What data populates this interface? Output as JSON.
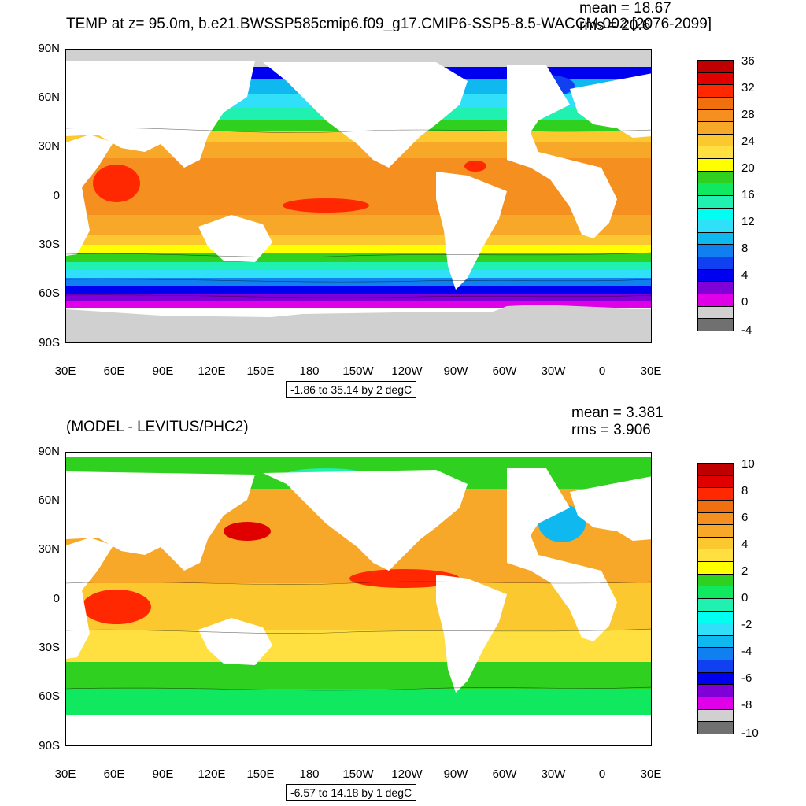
{
  "panels": [
    {
      "id": "top",
      "title": "TEMP at z=  95.0m, b.e21.BWSSP585cmip6.f09_g17.CMIP6-SSP5-8.5-WACCM.002 [2076-2099]",
      "mean_label": "mean = 18.67",
      "rms_label": "rms = 20.6",
      "range_label": "-1.86 to 35.14 by 2 degC",
      "lat_labels": [
        "90N",
        "60N",
        "30N",
        "0",
        "30S",
        "60S",
        "90S"
      ],
      "lon_labels": [
        "30E",
        "60E",
        "90E",
        "120E",
        "150E",
        "180",
        "150W",
        "120W",
        "90W",
        "60W",
        "30W",
        "0",
        "30E"
      ],
      "colorbar_labels": [
        "36",
        "32",
        "28",
        "24",
        "20",
        "16",
        "12",
        "8",
        "4",
        "0",
        "-4"
      ],
      "colorbar_colors": [
        "#c00000",
        "#e00000",
        "#ff2800",
        "#f07010",
        "#f59020",
        "#f8a828",
        "#fcc830",
        "#ffe040",
        "#ffff00",
        "#30d020",
        "#10e860",
        "#20f0b0",
        "#00fff0",
        "#30e0f8",
        "#10b8f0",
        "#1080f0",
        "#1040f0",
        "#0000f0",
        "#8000d8",
        "#e000e8",
        "#d0d0d0",
        "#707070"
      ]
    },
    {
      "id": "bottom",
      "title": "(MODEL - LEVITUS/PHC2)",
      "mean_label": "mean = 3.381",
      "rms_label": "rms = 3.906",
      "range_label": "-6.57 to 14.18 by 1 degC",
      "lat_labels": [
        "90N",
        "60N",
        "30N",
        "0",
        "30S",
        "60S",
        "90S"
      ],
      "lon_labels": [
        "30E",
        "60E",
        "90E",
        "120E",
        "150E",
        "180",
        "150W",
        "120W",
        "90W",
        "60W",
        "30W",
        "0",
        "30E"
      ],
      "colorbar_labels": [
        "10",
        "8",
        "6",
        "4",
        "2",
        "0",
        "-2",
        "-4",
        "-6",
        "-8",
        "-10"
      ],
      "colorbar_colors": [
        "#c00000",
        "#e00000",
        "#ff2800",
        "#f07010",
        "#f59020",
        "#f8a828",
        "#fcc830",
        "#ffe040",
        "#ffff00",
        "#30d020",
        "#10e860",
        "#20f0b0",
        "#00fff0",
        "#30e0f8",
        "#10b8f0",
        "#1080f0",
        "#1040f0",
        "#0000f0",
        "#8000d8",
        "#e000e8",
        "#d0d0d0",
        "#707070"
      ]
    }
  ]
}
